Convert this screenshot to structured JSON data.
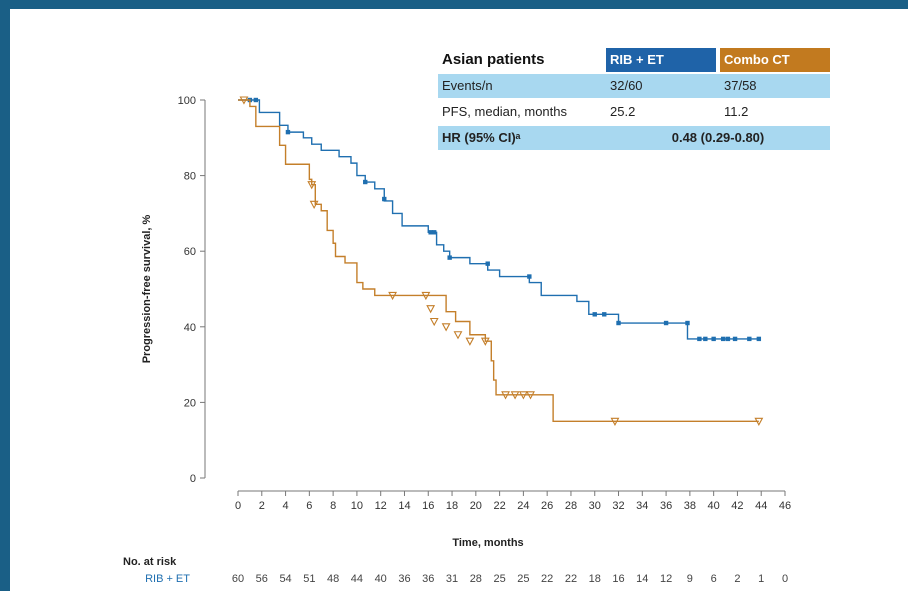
{
  "table": {
    "title": "Asian patients",
    "col1": "RIB + ET",
    "col2": "Combo CT",
    "rows": [
      {
        "label": "Events/n",
        "v1": "32/60",
        "v2": "37/58"
      },
      {
        "label": "PFS, median, months",
        "v1": "25.2",
        "v2": "11.2"
      }
    ],
    "hr_label": "HR (95% CI)ᵃ",
    "hr_value": "0.48 (0.29-0.80)"
  },
  "risk_table": {
    "title": "No. at risk",
    "rows": [
      {
        "label": "RIB + ET",
        "values": [
          "60",
          "56",
          "54",
          "51",
          "48",
          "44",
          "40",
          "36",
          "36",
          "31",
          "28",
          "25",
          "25",
          "22",
          "22",
          "18",
          "16",
          "14",
          "12",
          "9",
          "6",
          "2",
          "1",
          "0"
        ]
      }
    ]
  },
  "colors": {
    "rib_et": "#1f6fb0",
    "combo_ct": "#c47f2a",
    "table_header_rib": "#1f63a8",
    "table_header_combo": "#c27a1f",
    "table_row_fill": "#a8d8f0",
    "frame": "#1a5f86"
  },
  "chart_data": {
    "type": "line",
    "step": true,
    "xlabel": "Time, months",
    "ylabel": "Progression-free survival, %",
    "xlim": [
      0,
      46
    ],
    "ylim": [
      0,
      100
    ],
    "xticks": [
      0,
      2,
      4,
      6,
      8,
      10,
      12,
      14,
      16,
      18,
      20,
      22,
      24,
      26,
      28,
      30,
      32,
      34,
      36,
      38,
      40,
      42,
      44,
      46
    ],
    "yticks": [
      0,
      20,
      40,
      60,
      80,
      100
    ],
    "series": [
      {
        "name": "RIB + ET",
        "color": "#1f6fb0",
        "marker": "square",
        "steps": [
          [
            0,
            100
          ],
          [
            1.8,
            96.7
          ],
          [
            3.5,
            93.3
          ],
          [
            4.2,
            91.5
          ],
          [
            5.5,
            90
          ],
          [
            6.2,
            88.3
          ],
          [
            7.0,
            86.7
          ],
          [
            8.5,
            85
          ],
          [
            9.5,
            83.3
          ],
          [
            10.0,
            80
          ],
          [
            10.7,
            78.3
          ],
          [
            11.5,
            76.5
          ],
          [
            12.3,
            73.3
          ],
          [
            13.0,
            70
          ],
          [
            13.8,
            66.7
          ],
          [
            16.0,
            65
          ],
          [
            16.7,
            61.7
          ],
          [
            17.3,
            60
          ],
          [
            17.8,
            58.3
          ],
          [
            19.5,
            56.7
          ],
          [
            21.0,
            55
          ],
          [
            22.0,
            53.3
          ],
          [
            24.5,
            51.7
          ],
          [
            25.5,
            48.3
          ],
          [
            28.5,
            46.7
          ],
          [
            29.5,
            43.3
          ],
          [
            32.0,
            41
          ],
          [
            37.8,
            36.8
          ],
          [
            43.8,
            36.8
          ]
        ],
        "censors": [
          [
            1.0,
            100
          ],
          [
            1.5,
            100
          ],
          [
            4.2,
            91.5
          ],
          [
            10.7,
            78.3
          ],
          [
            12.3,
            73.8
          ],
          [
            16.2,
            65
          ],
          [
            16.5,
            65
          ],
          [
            17.8,
            58.3
          ],
          [
            21.0,
            56.7
          ],
          [
            24.5,
            53.3
          ],
          [
            30.0,
            43.3
          ],
          [
            30.8,
            43.3
          ],
          [
            32.0,
            41
          ],
          [
            36.0,
            41
          ],
          [
            37.8,
            41
          ],
          [
            38.8,
            36.8
          ],
          [
            39.3,
            36.8
          ],
          [
            40.0,
            36.8
          ],
          [
            40.8,
            36.8
          ],
          [
            41.2,
            36.8
          ],
          [
            41.8,
            36.8
          ],
          [
            43.0,
            36.8
          ],
          [
            43.8,
            36.8
          ]
        ]
      },
      {
        "name": "Combo CT",
        "color": "#c47f2a",
        "marker": "triangle",
        "steps": [
          [
            0,
            100
          ],
          [
            1.0,
            98.3
          ],
          [
            1.5,
            93
          ],
          [
            3.5,
            88
          ],
          [
            4.0,
            83
          ],
          [
            6.0,
            79
          ],
          [
            6.2,
            77.6
          ],
          [
            6.5,
            72.4
          ],
          [
            7.0,
            70.7
          ],
          [
            7.5,
            65.5
          ],
          [
            8.0,
            62.1
          ],
          [
            8.2,
            58.6
          ],
          [
            9.0,
            56.9
          ],
          [
            10.0,
            51.7
          ],
          [
            10.5,
            50
          ],
          [
            11.5,
            48.3
          ],
          [
            17.5,
            44
          ],
          [
            18.3,
            41.4
          ],
          [
            19.5,
            37.9
          ],
          [
            20.8,
            36.2
          ],
          [
            21.3,
            31
          ],
          [
            21.5,
            25.9
          ],
          [
            21.7,
            22
          ],
          [
            26.5,
            15
          ],
          [
            43.8,
            15
          ]
        ],
        "censors": [
          [
            0.5,
            100
          ],
          [
            6.2,
            77.6
          ],
          [
            6.4,
            72.4
          ],
          [
            13.0,
            48.3
          ],
          [
            15.8,
            48.3
          ],
          [
            16.2,
            44.8
          ],
          [
            16.5,
            41.4
          ],
          [
            17.5,
            40
          ],
          [
            18.5,
            37.9
          ],
          [
            19.5,
            36.2
          ],
          [
            20.8,
            36.2
          ],
          [
            22.5,
            22
          ],
          [
            23.3,
            22
          ],
          [
            24.0,
            22
          ],
          [
            24.6,
            22
          ],
          [
            31.7,
            15
          ],
          [
            43.8,
            15
          ]
        ]
      }
    ]
  }
}
